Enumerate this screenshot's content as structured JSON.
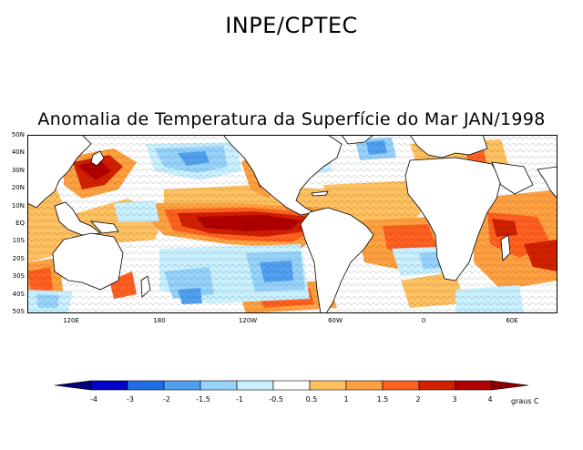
{
  "header": {
    "organization": "INPE/CPTEC",
    "map_title": "Anomalia de Temperatura da Superfície do Mar JAN/1998"
  },
  "map": {
    "latitude_labels": [
      "50N",
      "40N",
      "30N",
      "20N",
      "10N",
      "EQ",
      "10S",
      "20S",
      "30S",
      "40S",
      "50S"
    ],
    "longitude_labels": [
      "120E",
      "180",
      "120W",
      "60W",
      "0",
      "60E"
    ],
    "colors": {
      "land": "#ffffff",
      "coast": "#000000"
    }
  },
  "colorbar": {
    "labels": [
      "-4",
      "-3",
      "-2",
      "-1.5",
      "-1",
      "-0.5",
      "0.5",
      "1",
      "1.5",
      "2",
      "3",
      "4"
    ],
    "colors": [
      "#00007f",
      "#0000c8",
      "#1e6ee6",
      "#50a0f0",
      "#96d2fa",
      "#c8f0ff",
      "#ffffff",
      "#ffc060",
      "#ffa040",
      "#ff6020",
      "#d02000",
      "#b00000",
      "#8a0000"
    ],
    "units": "graus C"
  }
}
